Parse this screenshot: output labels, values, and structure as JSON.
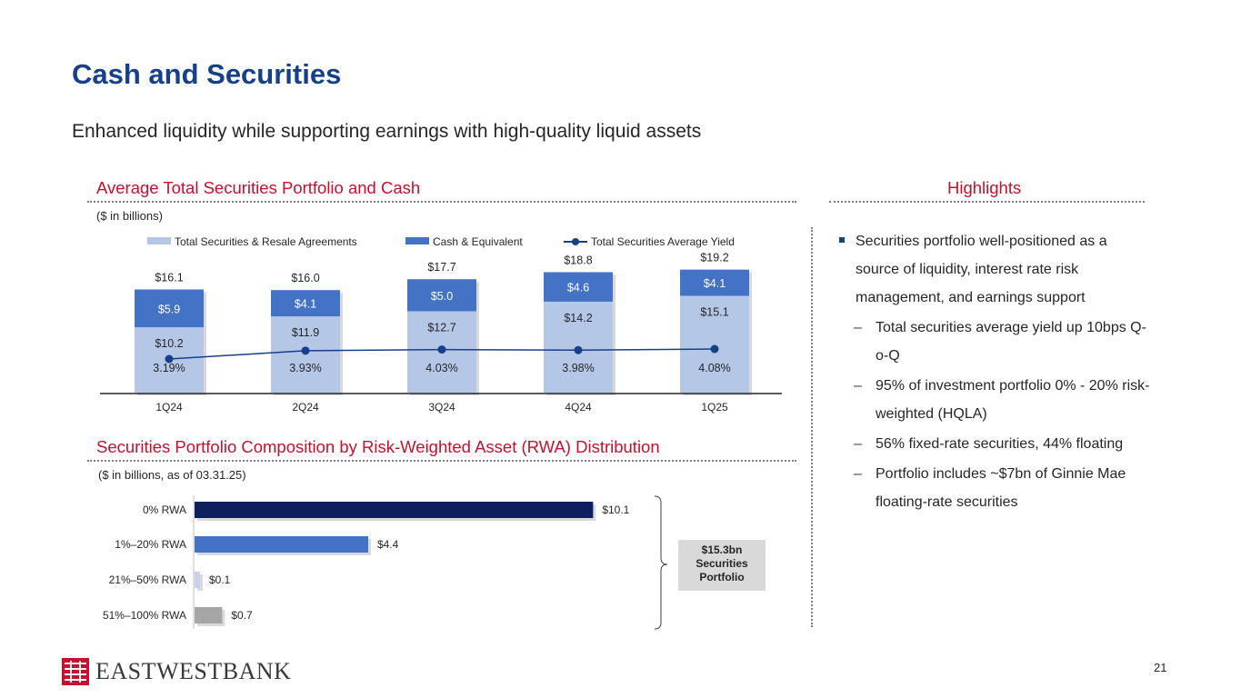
{
  "title": "Cash and Securities",
  "subtitle": "Enhanced liquidity while supporting earnings with high-quality liquid assets",
  "colors": {
    "brand": "#17408b",
    "accent_red": "#c8102e",
    "securities": "#b4c7e7",
    "cash": "#4472c4",
    "yield_line": "#17408b",
    "rwa_0": "#0d1f5c",
    "rwa_1_20": "#4472c4",
    "rwa_21_50": "#c8d3ea",
    "rwa_51_100": "#a6a6a6"
  },
  "portfolio_section": {
    "title": "Average Total Securities Portfolio and Cash",
    "units": "($ in billions)"
  },
  "rwa_section": {
    "title": "Securities Portfolio Composition by Risk-Weighted Asset (RWA) Distribution",
    "units": "($ in billions, as of 03.31.25)",
    "callout": [
      "$15.3bn",
      "Securities",
      "Portfolio"
    ]
  },
  "highlights": {
    "title": "Highlights",
    "main": "Securities portfolio well-positioned as a source of liquidity, interest rate risk management, and earnings support",
    "subs": [
      "Total securities average yield up 10bps Q-o-Q",
      "95% of investment portfolio 0% - 20% risk-weighted (HQLA)",
      "56% fixed-rate securities, 44% floating",
      "Portfolio includes ~$7bn of Ginnie Mae floating-rate securities"
    ]
  },
  "chart_data": [
    {
      "type": "bar",
      "stacked": true,
      "title": "Average Total Securities Portfolio and Cash",
      "categories": [
        "1Q24",
        "2Q24",
        "3Q24",
        "4Q24",
        "1Q25"
      ],
      "series": [
        {
          "name": "Total Securities & Resale Agreements",
          "values": [
            10.2,
            11.9,
            12.7,
            14.2,
            15.1
          ],
          "labels": [
            "$10.2",
            "$11.9",
            "$12.7",
            "$14.2",
            "$15.1"
          ]
        },
        {
          "name": "Cash & Equivalent",
          "values": [
            5.9,
            4.1,
            5.0,
            4.6,
            4.1
          ],
          "labels": [
            "$5.9",
            "$4.1",
            "$5.0",
            "$4.6",
            "$4.1"
          ]
        }
      ],
      "totals": [
        16.1,
        16.0,
        17.7,
        18.8,
        19.2
      ],
      "total_labels": [
        "$16.1",
        "$16.0",
        "$17.7",
        "$18.8",
        "$19.2"
      ],
      "line": {
        "name": "Total Securities Average Yield",
        "values": [
          3.19,
          3.93,
          4.03,
          3.98,
          4.08
        ],
        "labels": [
          "3.19%",
          "3.93%",
          "4.03%",
          "3.98%",
          "4.08%"
        ]
      },
      "legend_position": "top"
    },
    {
      "type": "bar",
      "orientation": "horizontal",
      "title": "Securities Portfolio Composition by Risk-Weighted Asset (RWA) Distribution",
      "categories": [
        "0% RWA",
        "1%–20% RWA",
        "21%–50% RWA",
        "51%–100% RWA"
      ],
      "values": [
        10.1,
        4.4,
        0.1,
        0.7
      ],
      "labels": [
        "$10.1",
        "$4.4",
        "$0.1",
        "$0.7"
      ]
    }
  ],
  "logo": {
    "text": "EASTWESTBANK"
  },
  "page_number": "21"
}
